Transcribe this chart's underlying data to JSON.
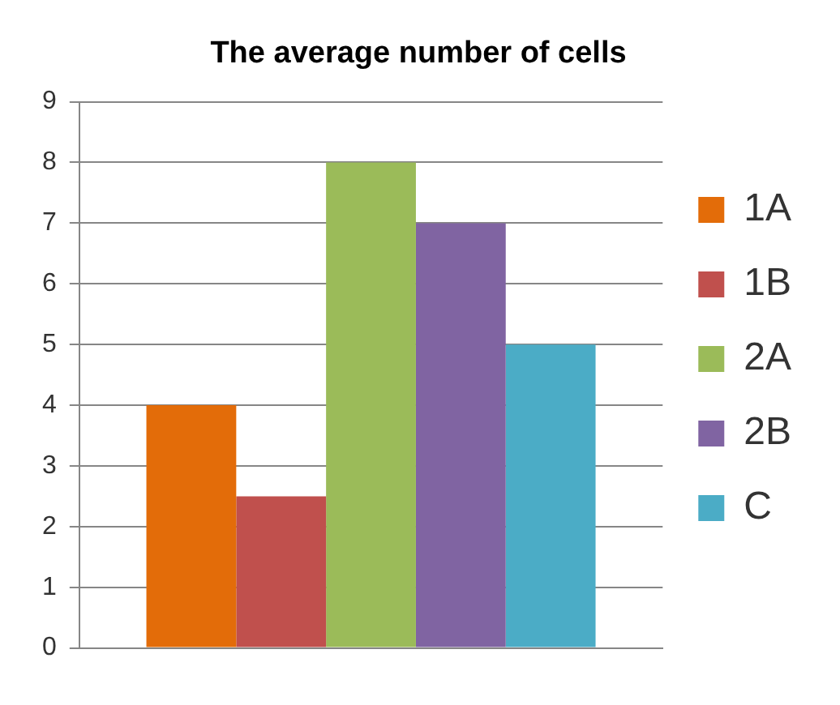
{
  "chart_data": {
    "type": "bar",
    "title": "The average number of cells",
    "categories": [
      null
    ],
    "series": [
      {
        "name": "1A",
        "color": "#e36c09",
        "values": [
          4
        ]
      },
      {
        "name": "1B",
        "color": "#c0504d",
        "values": [
          2.5
        ]
      },
      {
        "name": "2A",
        "color": "#9bbb59",
        "values": [
          8
        ]
      },
      {
        "name": "2B",
        "color": "#8064a2",
        "values": [
          7
        ]
      },
      {
        "name": "C",
        "color": "#4bacc6",
        "values": [
          5
        ]
      }
    ],
    "ylim": [
      0,
      9
    ],
    "yticks": [
      0,
      1,
      2,
      3,
      4,
      5,
      6,
      7,
      8,
      9
    ],
    "grid": "y",
    "legend": "right"
  }
}
